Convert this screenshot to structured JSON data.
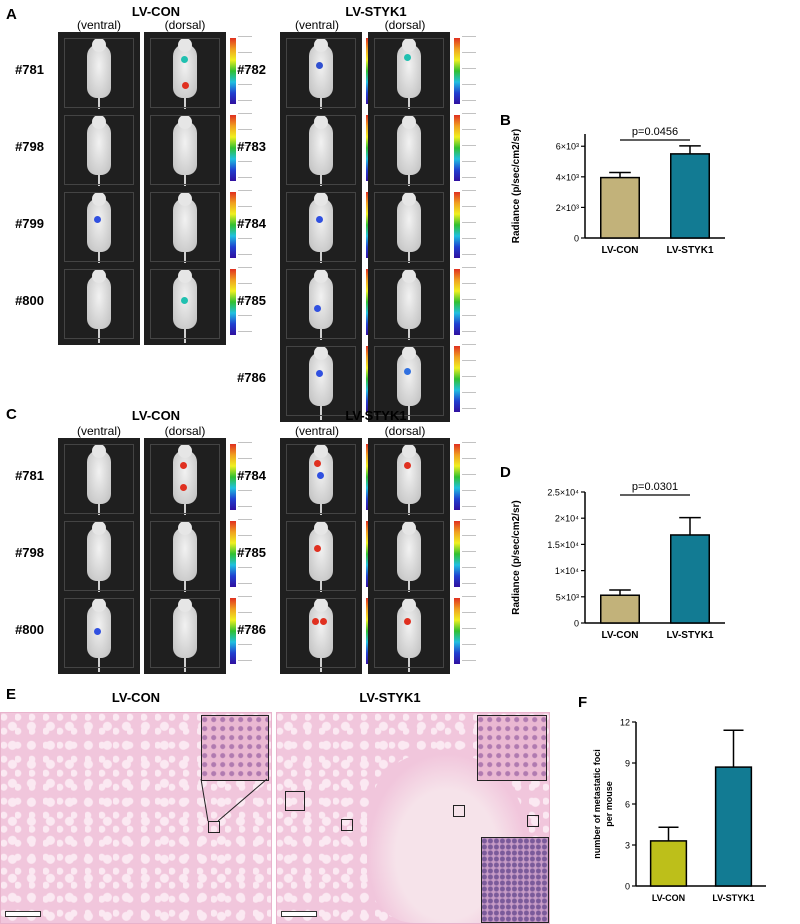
{
  "panels": {
    "A": {
      "label": "A",
      "groups": [
        {
          "title": "LV-CON",
          "views": [
            "(ventral)",
            "(dorsal)"
          ],
          "mice": [
            "#781",
            "#798",
            "#799",
            "#800"
          ]
        },
        {
          "title": "LV-STYK1",
          "views": [
            "(ventral)",
            "(dorsal)"
          ],
          "mice": [
            "#782",
            "#783",
            "#784",
            "#785",
            "#786"
          ]
        }
      ]
    },
    "C": {
      "label": "C",
      "groups": [
        {
          "title": "LV-CON",
          "views": [
            "(ventral)",
            "(dorsal)"
          ],
          "mice": [
            "#781",
            "#798",
            "#800"
          ]
        },
        {
          "title": "LV-STYK1",
          "views": [
            "(ventral)",
            "(dorsal)"
          ],
          "mice": [
            "#784",
            "#785",
            "#786"
          ]
        }
      ]
    },
    "E": {
      "label": "E",
      "titles": [
        "LV-CON",
        "LV-STYK1"
      ]
    }
  },
  "chart_data": [
    {
      "panel": "B",
      "type": "bar",
      "categories": [
        "LV-CON",
        "LV-STYK1"
      ],
      "values": [
        3950,
        5500
      ],
      "errors": [
        330,
        520
      ],
      "colors": [
        "#c2b27a",
        "#127b93"
      ],
      "ylabel": "Radiance (p/sec/cm2/sr)",
      "ylim": [
        0,
        6800
      ],
      "yticks": [
        0,
        2000,
        4000,
        6000
      ],
      "yticklabels": [
        "0",
        "2×10³",
        "4×10³",
        "6×10³"
      ],
      "annotation": "p=0.0456"
    },
    {
      "panel": "D",
      "type": "bar",
      "categories": [
        "LV-CON",
        "LV-STYK1"
      ],
      "values": [
        5300,
        16800
      ],
      "errors": [
        1000,
        3300
      ],
      "colors": [
        "#c2b27a",
        "#127b93"
      ],
      "ylabel": "Radiance (p/sec/cm2/sr)",
      "ylim": [
        0,
        25000
      ],
      "yticks": [
        0,
        5000,
        10000,
        15000,
        20000,
        25000
      ],
      "yticklabels": [
        "0",
        "5×10³",
        "1×10⁴",
        "1.5×10⁴",
        "2×10⁴",
        "2.5×10⁴"
      ],
      "annotation": "p=0.0301"
    },
    {
      "panel": "F",
      "type": "bar",
      "categories": [
        "LV-CON",
        "LV-STYK1"
      ],
      "values": [
        3.3,
        8.7
      ],
      "errors": [
        1.0,
        2.7
      ],
      "colors": [
        "#bdbf1a",
        "#127b93"
      ],
      "ylabel_lines": [
        "number of metastatic foci",
        "per mouse"
      ],
      "ylim": [
        0,
        12
      ],
      "yticks": [
        0,
        3,
        6,
        9,
        12
      ],
      "yticklabels": [
        "0",
        "3",
        "6",
        "9",
        "12"
      ],
      "annotation": ""
    }
  ]
}
